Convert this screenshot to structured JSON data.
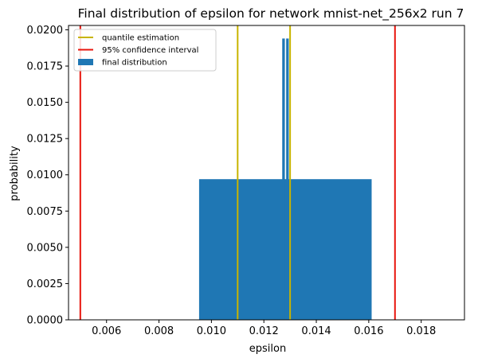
{
  "chart_data": {
    "type": "bar",
    "title": "Final distribution of epsilon for network mnist-net_256x2 run 7",
    "xlabel": "epsilon",
    "ylabel": "probability",
    "xlim": [
      0.00455,
      0.01965
    ],
    "ylim": [
      0,
      0.0203
    ],
    "x_ticks": [
      0.006,
      0.008,
      0.01,
      0.012,
      0.014,
      0.016,
      0.018
    ],
    "x_tick_labels": [
      "0.006",
      "0.008",
      "0.010",
      "0.012",
      "0.014",
      "0.016",
      "0.018"
    ],
    "y_ticks": [
      0,
      0.0025,
      0.005,
      0.0075,
      0.01,
      0.0125,
      0.015,
      0.0175,
      0.02
    ],
    "y_tick_labels": [
      "0.0000",
      "0.0025",
      "0.0050",
      "0.0075",
      "0.0100",
      "0.0125",
      "0.0150",
      "0.0175",
      "0.0200"
    ],
    "grid": false,
    "legend_position": "top-left",
    "bars": [
      {
        "x0": 0.00953,
        "x1": 0.01611,
        "value": 0.0097
      },
      {
        "x0": 0.0127,
        "x1": 0.0128,
        "value": 0.0194
      },
      {
        "x0": 0.01285,
        "x1": 0.01295,
        "value": 0.0194
      }
    ],
    "quantile_estimation": [
      0.011,
      0.013
    ],
    "confidence_interval": [
      0.005,
      0.017
    ],
    "series": [
      {
        "name": "quantile estimation",
        "kind": "line",
        "color": "#c8b400"
      },
      {
        "name": "95% confidence interval",
        "kind": "line",
        "color": "#e8140c"
      },
      {
        "name": "final distribution",
        "kind": "bar",
        "color": "#1f77b4"
      }
    ]
  }
}
